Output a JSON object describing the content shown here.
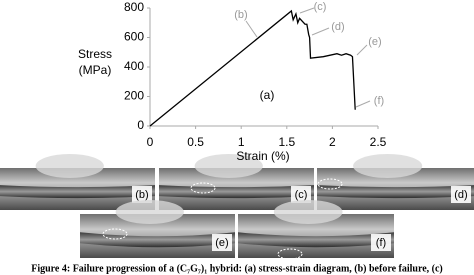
{
  "chart_data": {
    "type": "line",
    "ylabel": [
      "Stress",
      "(MPa)"
    ],
    "xlabel": "Strain (%)",
    "x": [
      0,
      1.55,
      1.57,
      1.6,
      1.62,
      1.64,
      1.7,
      1.72,
      1.74,
      1.75,
      1.76,
      1.9,
      2.05,
      2.1,
      2.15,
      2.2,
      2.22,
      2.25
    ],
    "series": [
      {
        "color": "#000000",
        "values": [
          0,
          780,
          720,
          760,
          700,
          730,
          690,
          690,
          620,
          600,
          460,
          470,
          490,
          480,
          490,
          480,
          470,
          110
        ]
      }
    ],
    "xlim": [
      0,
      2.5
    ],
    "xticks": [
      0,
      0.5,
      1,
      1.5,
      2,
      2.5
    ],
    "ylim": [
      0,
      800
    ],
    "yticks": [
      0,
      200,
      400,
      600,
      800
    ],
    "annotations": [
      "(a)",
      "(b)",
      "(c)",
      "(d)",
      "(e)",
      "(f)"
    ]
  },
  "figure_panels": [
    "(b)",
    "(c)",
    "(d)",
    "(e)",
    "(f)"
  ],
  "caption": "Figure 4: Failure progression of a (C₇G₇)₁ hybrid: (a) stress-strain diagram, (b) before failure, (c)"
}
